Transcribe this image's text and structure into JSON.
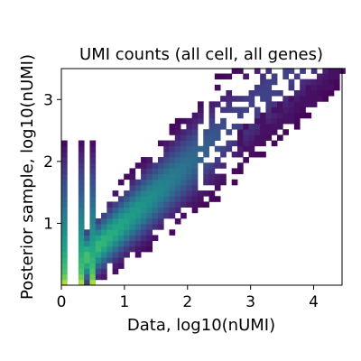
{
  "chart_data": {
    "type": "heatmap",
    "title": "UMI counts (all cell, all genes)",
    "xlabel": "Data, log10(nUMI)",
    "ylabel": "Posterior sample, log10(nUMI)",
    "xlim": [
      0,
      4.45
    ],
    "ylim": [
      0,
      3.5
    ],
    "x_ticks": [
      "0",
      "1",
      "2",
      "3",
      "4"
    ],
    "y_ticks": [
      "1",
      "2",
      "3"
    ],
    "x_tick_values": [
      0,
      1,
      2,
      3,
      4
    ],
    "y_tick_values": [
      1,
      2,
      3
    ],
    "grid": false,
    "colormap": "viridis",
    "bin_width": 0.09,
    "description_of_density": {
      "trend": "positive diagonal correlation",
      "dense_columns_at_x": [
        0,
        0.3,
        0.48
      ],
      "tail_max": [
        4.4,
        3.45
      ]
    }
  },
  "colors": {
    "background": "#ffffff",
    "viridis_low": "#440154",
    "viridis_mid": "#21918c",
    "viridis_high": "#fde725"
  }
}
